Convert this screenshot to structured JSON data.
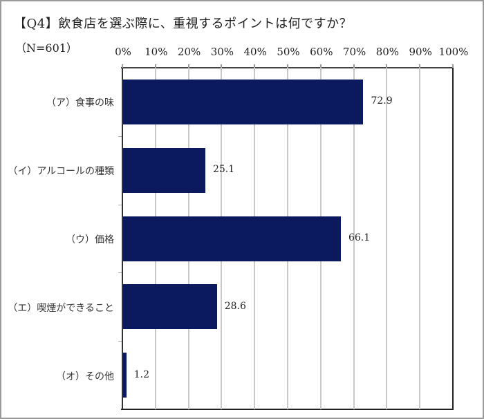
{
  "chart_data": {
    "type": "bar",
    "orientation": "horizontal",
    "title": "【Q4】飲食店を選ぶ際に、重視するポイントは何ですか？",
    "subtitle": "（N=601）",
    "categories": [
      "（ア）食事の味",
      "（イ）アルコールの種類",
      "（ウ）価格",
      "（エ）喫煙ができること",
      "（オ）その他"
    ],
    "values": [
      72.9,
      25.1,
      66.1,
      28.6,
      1.2
    ],
    "value_labels": [
      "72.9",
      "25.1",
      "66.1",
      "28.6",
      "1.2"
    ],
    "xlabel": "",
    "ylabel": "",
    "xlim": [
      0,
      100
    ],
    "x_ticks": [
      "0%",
      "10%",
      "20%",
      "30%",
      "40%",
      "50%",
      "60%",
      "70%",
      "80%",
      "90%",
      "100%"
    ],
    "x_axis_position": "top",
    "grid": true,
    "legend": null,
    "bar_color": "#0b1a5e"
  }
}
